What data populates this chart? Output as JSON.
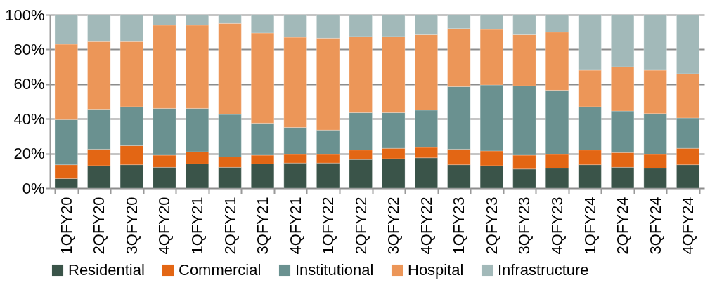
{
  "chart_data": {
    "type": "bar",
    "stacked": true,
    "categories": [
      "1QFY20",
      "2QFY20",
      "3QFY20",
      "4QFY20",
      "1QFY21",
      "2QFY21",
      "3QFY21",
      "4QFY21",
      "1QFY22",
      "2QFY22",
      "3QFY22",
      "4QFY22",
      "1QFY23",
      "2QFY23",
      "3QFY23",
      "4QFY23",
      "1QFY24",
      "2QFY24",
      "3QFY24",
      "4QFY24"
    ],
    "series": [
      {
        "name": "Residential",
        "color": "#3a5449",
        "values": [
          5.5,
          13,
          13.5,
          12,
          14,
          12,
          14,
          14.5,
          14.5,
          16.5,
          17,
          17.5,
          13.5,
          13,
          11,
          11.5,
          13.5,
          12,
          11.5,
          13.5
        ]
      },
      {
        "name": "Commercial",
        "color": "#e36614",
        "values": [
          8,
          9.5,
          11,
          7,
          7,
          6,
          5,
          5,
          5,
          5.5,
          6,
          6,
          9,
          8.5,
          8,
          8,
          8.5,
          8.5,
          8,
          9.5
        ]
      },
      {
        "name": "Institutional",
        "color": "#6a9190",
        "values": [
          26,
          23,
          22.5,
          27,
          25,
          24.5,
          18.5,
          15.5,
          14,
          21.5,
          20.5,
          21.5,
          36,
          38,
          40,
          37,
          25,
          24,
          23.5,
          17.5
        ]
      },
      {
        "name": "Hospital",
        "color": "#ec9658",
        "values": [
          43.5,
          39,
          37.5,
          48,
          48,
          52.5,
          52,
          52,
          53,
          44,
          44,
          43.5,
          33.5,
          32,
          29.5,
          33.5,
          21,
          25.5,
          25,
          25.5
        ]
      },
      {
        "name": "Infrastructure",
        "color": "#a2b9b9",
        "values": [
          17,
          15.5,
          15.5,
          6,
          6,
          5,
          10.5,
          13,
          13.5,
          12.5,
          12.5,
          11.5,
          8,
          8.5,
          11.5,
          10,
          32,
          30,
          32,
          34
        ]
      }
    ],
    "ylim": [
      0,
      100
    ],
    "yticks": [
      {
        "value": 0,
        "label": "0%"
      },
      {
        "value": 20,
        "label": "20%"
      },
      {
        "value": 40,
        "label": "40%"
      },
      {
        "value": 60,
        "label": "60%"
      },
      {
        "value": 80,
        "label": "80%"
      },
      {
        "value": 100,
        "label": "100%"
      }
    ],
    "grid": "y",
    "legend": "bottom"
  }
}
